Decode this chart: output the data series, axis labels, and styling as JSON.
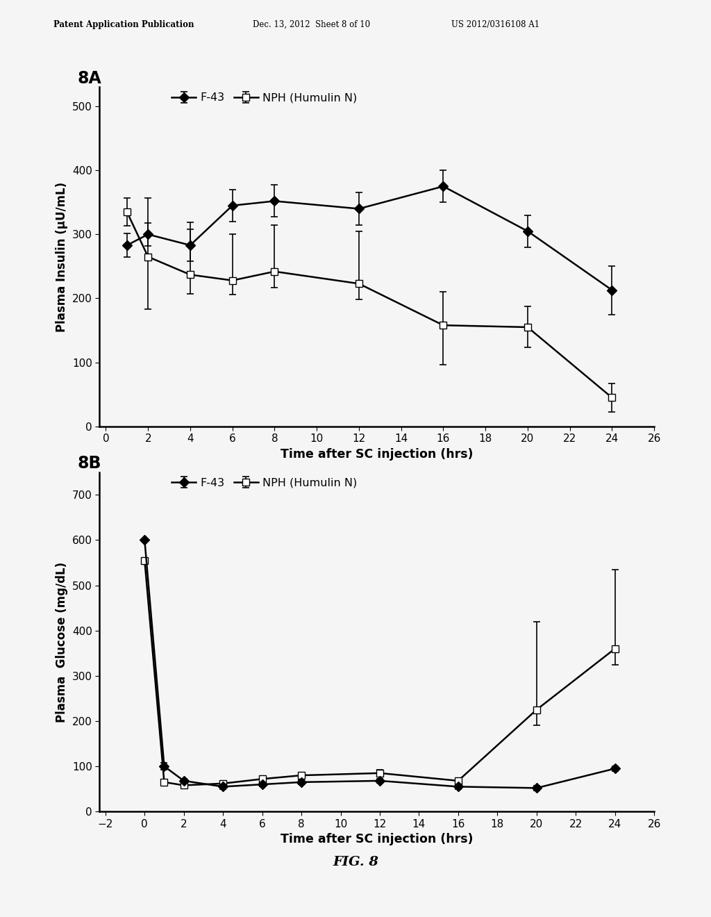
{
  "panel_a": {
    "label": "8A",
    "f43_x": [
      1,
      2,
      4,
      6,
      8,
      12,
      16,
      20,
      24
    ],
    "f43_y": [
      283,
      300,
      283,
      345,
      352,
      340,
      375,
      305,
      213
    ],
    "f43_yerr_lo": [
      18,
      18,
      25,
      25,
      25,
      25,
      25,
      25,
      38
    ],
    "f43_yerr_hi": [
      18,
      18,
      25,
      25,
      25,
      25,
      25,
      25,
      38
    ],
    "nph_x": [
      1,
      2,
      4,
      6,
      8,
      12,
      16,
      20,
      24
    ],
    "nph_y": [
      335,
      265,
      237,
      228,
      242,
      223,
      158,
      155,
      45
    ],
    "nph_yerr_lo": [
      22,
      82,
      30,
      22,
      25,
      25,
      62,
      32,
      22
    ],
    "nph_yerr_hi": [
      22,
      92,
      82,
      72,
      72,
      82,
      52,
      32,
      22
    ],
    "ylabel": "Plasma Insulin (μU/mL)",
    "xlabel": "Time after SC injection (hrs)",
    "ylim": [
      0,
      530
    ],
    "yticks": [
      0,
      100,
      200,
      300,
      400,
      500
    ],
    "xlim": [
      -0.3,
      26
    ],
    "xticks": [
      0,
      2,
      4,
      6,
      8,
      10,
      12,
      14,
      16,
      18,
      20,
      22,
      24,
      26
    ]
  },
  "panel_b": {
    "label": "8B",
    "f43_x": [
      0,
      1,
      2,
      4,
      6,
      8,
      12,
      16,
      20,
      24
    ],
    "f43_y": [
      600,
      100,
      68,
      55,
      60,
      65,
      68,
      55,
      52,
      95
    ],
    "f43_yerr_lo": [
      0,
      8,
      5,
      5,
      5,
      5,
      5,
      5,
      5,
      5
    ],
    "f43_yerr_hi": [
      0,
      8,
      5,
      5,
      5,
      5,
      5,
      5,
      5,
      5
    ],
    "nph_x": [
      0,
      1,
      2,
      4,
      6,
      8,
      12,
      16,
      20,
      24
    ],
    "nph_y": [
      555,
      65,
      58,
      62,
      72,
      80,
      85,
      68,
      225,
      360
    ],
    "nph_yerr_lo": [
      0,
      5,
      5,
      5,
      5,
      5,
      8,
      5,
      35,
      35
    ],
    "nph_yerr_hi": [
      0,
      5,
      5,
      5,
      5,
      5,
      8,
      5,
      195,
      175
    ],
    "ylabel": "Plasma  Glucose (mg/dL)",
    "xlabel": "Time after SC injection (hrs)",
    "ylim": [
      0,
      750
    ],
    "yticks": [
      0,
      100,
      200,
      300,
      400,
      500,
      600,
      700
    ],
    "xlim": [
      -2.3,
      26
    ],
    "xticks": [
      -2,
      0,
      2,
      4,
      6,
      8,
      10,
      12,
      14,
      16,
      18,
      20,
      22,
      24,
      26
    ]
  },
  "fig_label": "FIG. 8",
  "header_left": "Patent Application Publication",
  "header_center": "Dec. 13, 2012  Sheet 8 of 10",
  "header_right": "US 2012/0316108 A1",
  "bg_color": "#f5f5f5",
  "legend_f43": "F-43",
  "legend_nph": "NPH (Humulin N)"
}
